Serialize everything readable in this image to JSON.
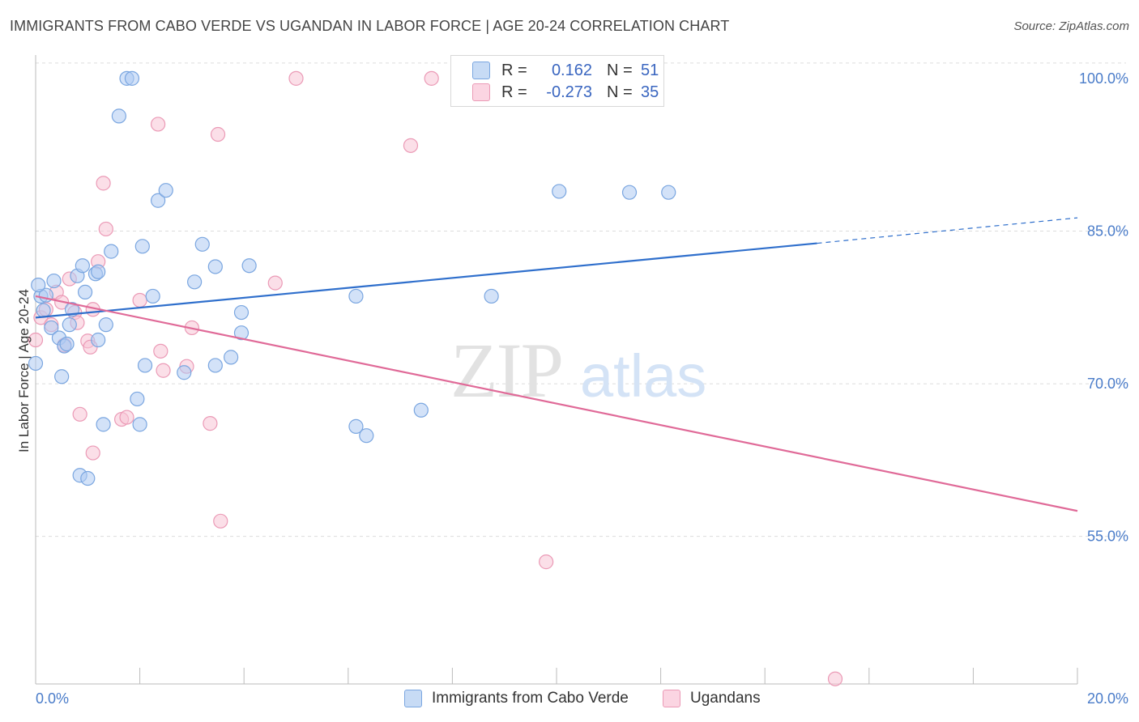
{
  "title": "IMMIGRANTS FROM CABO VERDE VS UGANDAN IN LABOR FORCE | AGE 20-24 CORRELATION CHART",
  "source": "Source: ZipAtlas.com",
  "watermark": {
    "zip": "ZIP",
    "atlas": "atlas"
  },
  "legend": {
    "rows": [
      {
        "r_label": "R =",
        "r_value": "0.162",
        "n_label": "N =",
        "n_value": "51"
      },
      {
        "r_label": "R =",
        "r_value": "-0.273",
        "n_label": "N =",
        "n_value": "35"
      }
    ]
  },
  "colors": {
    "blue_fill": "#aecbf2",
    "blue_stroke": "#7aa6e0",
    "blue_line": "#2f6fcc",
    "pink_fill": "#f7c5d5",
    "pink_stroke": "#eb9ab6",
    "pink_line": "#e06a98",
    "grid": "#dcdcdc",
    "tick_text": "#4a7cc9"
  },
  "chart_data": {
    "type": "scatter",
    "title": "IMMIGRANTS FROM CABO VERDE VS UGANDAN IN LABOR FORCE | AGE 20-24 CORRELATION CHART",
    "xlabel": "",
    "ylabel": "In Labor Force | Age 20-24",
    "xlim": [
      0,
      20
    ],
    "ylim": [
      40.5,
      101.5
    ],
    "x_tick_labels": [
      "0.0%",
      "20.0%"
    ],
    "y_ticks": [
      55,
      70,
      85,
      100
    ],
    "y_tick_labels": [
      "55.0%",
      "70.0%",
      "85.0%",
      "100.0%"
    ],
    "grid": true,
    "legend_position": "bottom",
    "series": [
      {
        "name": "Immigrants from Cabo Verde",
        "color": "#aecbf2",
        "points": [
          [
            0.0,
            72.0
          ],
          [
            0.1,
            78.6
          ],
          [
            0.15,
            77.2
          ],
          [
            0.2,
            78.7
          ],
          [
            0.3,
            75.5
          ],
          [
            0.35,
            80.1
          ],
          [
            0.45,
            74.5
          ],
          [
            0.5,
            70.7
          ],
          [
            0.55,
            73.7
          ],
          [
            0.6,
            73.9
          ],
          [
            0.65,
            75.8
          ],
          [
            0.7,
            77.3
          ],
          [
            0.8,
            80.6
          ],
          [
            0.85,
            61.0
          ],
          [
            0.9,
            81.6
          ],
          [
            0.95,
            79.0
          ],
          [
            1.0,
            60.7
          ],
          [
            1.15,
            80.8
          ],
          [
            1.2,
            81.0
          ],
          [
            1.2,
            74.3
          ],
          [
            1.3,
            66.0
          ],
          [
            1.35,
            75.8
          ],
          [
            1.45,
            83.0
          ],
          [
            1.6,
            96.3
          ],
          [
            1.75,
            100.0
          ],
          [
            1.85,
            100.0
          ],
          [
            1.95,
            68.5
          ],
          [
            2.0,
            66.0
          ],
          [
            2.05,
            83.5
          ],
          [
            2.1,
            71.8
          ],
          [
            2.25,
            78.6
          ],
          [
            2.35,
            88.0
          ],
          [
            2.5,
            89.0
          ],
          [
            2.85,
            71.1
          ],
          [
            3.05,
            80.0
          ],
          [
            3.2,
            83.7
          ],
          [
            3.45,
            71.8
          ],
          [
            3.45,
            81.5
          ],
          [
            3.75,
            72.6
          ],
          [
            3.95,
            75.0
          ],
          [
            3.95,
            77.0
          ],
          [
            4.1,
            81.6
          ],
          [
            6.15,
            78.6
          ],
          [
            6.15,
            65.8
          ],
          [
            6.35,
            64.9
          ],
          [
            7.4,
            67.4
          ],
          [
            8.75,
            78.6
          ],
          [
            10.05,
            88.9
          ],
          [
            11.4,
            88.8
          ],
          [
            12.15,
            88.8
          ],
          [
            0.05,
            79.7
          ]
        ]
      },
      {
        "name": "Ugandans",
        "color": "#f7c5d5",
        "points": [
          [
            0.0,
            74.3
          ],
          [
            0.1,
            76.5
          ],
          [
            0.2,
            77.3
          ],
          [
            0.3,
            75.8
          ],
          [
            0.4,
            79.0
          ],
          [
            0.5,
            78.0
          ],
          [
            0.55,
            73.8
          ],
          [
            0.65,
            80.3
          ],
          [
            0.75,
            77.0
          ],
          [
            0.8,
            76.0
          ],
          [
            0.85,
            67.0
          ],
          [
            1.0,
            74.2
          ],
          [
            1.05,
            73.6
          ],
          [
            1.1,
            77.3
          ],
          [
            1.1,
            63.2
          ],
          [
            1.2,
            82.0
          ],
          [
            1.3,
            89.7
          ],
          [
            1.35,
            85.2
          ],
          [
            1.65,
            66.5
          ],
          [
            1.75,
            66.7
          ],
          [
            2.0,
            78.2
          ],
          [
            2.35,
            95.5
          ],
          [
            2.4,
            73.2
          ],
          [
            2.45,
            71.3
          ],
          [
            2.9,
            71.7
          ],
          [
            3.0,
            75.5
          ],
          [
            3.35,
            66.1
          ],
          [
            3.5,
            94.5
          ],
          [
            3.55,
            56.5
          ],
          [
            4.6,
            79.9
          ],
          [
            5.0,
            100.0
          ],
          [
            7.2,
            93.4
          ],
          [
            7.6,
            100.0
          ],
          [
            9.8,
            52.5
          ],
          [
            15.35,
            41.0
          ]
        ]
      }
    ],
    "trend_lines": [
      {
        "series": "Immigrants from Cabo Verde",
        "x_start": 0.0,
        "y_start": 76.5,
        "x_solid_end": 15.0,
        "y_solid_end": 83.8,
        "x_end": 20.0,
        "y_end": 86.3
      },
      {
        "series": "Ugandans",
        "x_start": 0.0,
        "y_start": 78.6,
        "x_end": 20.0,
        "y_end": 57.5
      }
    ]
  },
  "bottom_legend": {
    "items": [
      {
        "label": "Immigrants from Cabo Verde"
      },
      {
        "label": "Ugandans"
      }
    ]
  }
}
